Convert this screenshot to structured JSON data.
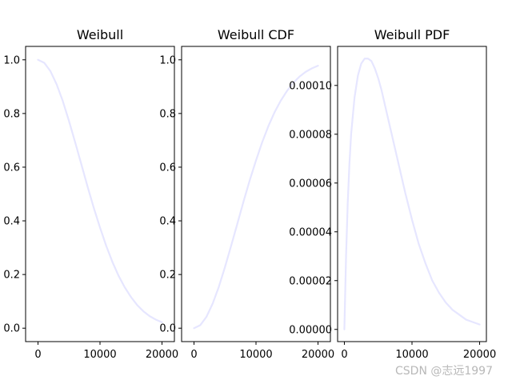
{
  "watermark": "CSDN @志远1997",
  "chart_data": [
    {
      "type": "line",
      "title": "Weibull",
      "xlabel": "",
      "ylabel": "",
      "xlim": [
        -2000,
        22000
      ],
      "ylim": [
        -0.05,
        1.05
      ],
      "xticks": [
        0,
        10000,
        20000
      ],
      "xtick_labels": [
        "0",
        "10000",
        "20000"
      ],
      "yticks": [
        0.0,
        0.2,
        0.4,
        0.6,
        0.8,
        1.0
      ],
      "ytick_labels": [
        "0.0",
        "0.2",
        "0.4",
        "0.6",
        "0.8",
        "1.0"
      ],
      "grid": false,
      "color": "#e6e6ff",
      "series": [
        {
          "x": [
            0,
            1000,
            2000,
            3000,
            4000,
            5000,
            6000,
            7000,
            8000,
            9000,
            10000,
            11000,
            12000,
            13000,
            14000,
            15000,
            16000,
            17000,
            18000,
            19000,
            20000
          ],
          "values": [
            1.0,
            0.989,
            0.958,
            0.909,
            0.846,
            0.772,
            0.692,
            0.61,
            0.527,
            0.448,
            0.375,
            0.307,
            0.247,
            0.195,
            0.152,
            0.116,
            0.086,
            0.063,
            0.045,
            0.032,
            0.022
          ]
        }
      ]
    },
    {
      "type": "line",
      "title": "Weibull CDF",
      "xlabel": "",
      "ylabel": "",
      "xlim": [
        -2000,
        22000
      ],
      "ylim": [
        -0.05,
        1.05
      ],
      "xticks": [
        0,
        10000,
        20000
      ],
      "xtick_labels": [
        "0",
        "10000",
        "20000"
      ],
      "yticks": [
        0.0,
        0.2,
        0.4,
        0.6,
        0.8,
        1.0
      ],
      "ytick_labels": [
        "0.0",
        "0.2",
        "0.4",
        "0.6",
        "0.8",
        "1.0"
      ],
      "grid": false,
      "color": "#e6e6ff",
      "series": [
        {
          "x": [
            0,
            1000,
            2000,
            3000,
            4000,
            5000,
            6000,
            7000,
            8000,
            9000,
            10000,
            11000,
            12000,
            13000,
            14000,
            15000,
            16000,
            17000,
            18000,
            19000,
            20000
          ],
          "values": [
            0.0,
            0.011,
            0.042,
            0.091,
            0.154,
            0.228,
            0.308,
            0.39,
            0.473,
            0.552,
            0.625,
            0.693,
            0.753,
            0.805,
            0.848,
            0.884,
            0.914,
            0.937,
            0.955,
            0.968,
            0.978
          ]
        }
      ]
    },
    {
      "type": "line",
      "title": "Weibull PDF",
      "xlabel": "",
      "ylabel": "",
      "xlim": [
        -1000,
        21000
      ],
      "ylim": [
        -5e-06,
        0.000116
      ],
      "xticks": [
        0,
        10000,
        20000
      ],
      "xtick_labels": [
        "0",
        "10000",
        "20000"
      ],
      "yticks": [
        0.0,
        2e-05,
        4e-05,
        6e-05,
        8e-05,
        0.0001
      ],
      "ytick_labels": [
        "0.00000",
        "0.00002",
        "0.00004",
        "0.00006",
        "0.00008",
        "0.00010"
      ],
      "grid": false,
      "color": "#e6e6ff",
      "series": [
        {
          "x": [
            0,
            250,
            500,
            750,
            1000,
            1500,
            2000,
            2500,
            3000,
            3500,
            4000,
            4500,
            5000,
            5500,
            6000,
            7000,
            8000,
            9000,
            10000,
            11000,
            12000,
            13000,
            14000,
            15000,
            16000,
            17000,
            18000,
            19000,
            20000
          ],
          "values": [
            0.0,
            3e-05,
            5.2e-05,
            6.8e-05,
            8e-05,
            9.5e-05,
            0.000104,
            0.000109,
            0.000111,
            0.000111,
            0.00011,
            0.000107,
            0.000103,
            9.8e-05,
            9.2e-05,
            8e-05,
            6.8e-05,
            5.6e-05,
            4.5e-05,
            3.5e-05,
            2.7e-05,
            2e-05,
            1.5e-05,
            1.1e-05,
            8e-06,
            6e-06,
            4e-06,
            3e-06,
            2e-06
          ]
        }
      ]
    }
  ]
}
